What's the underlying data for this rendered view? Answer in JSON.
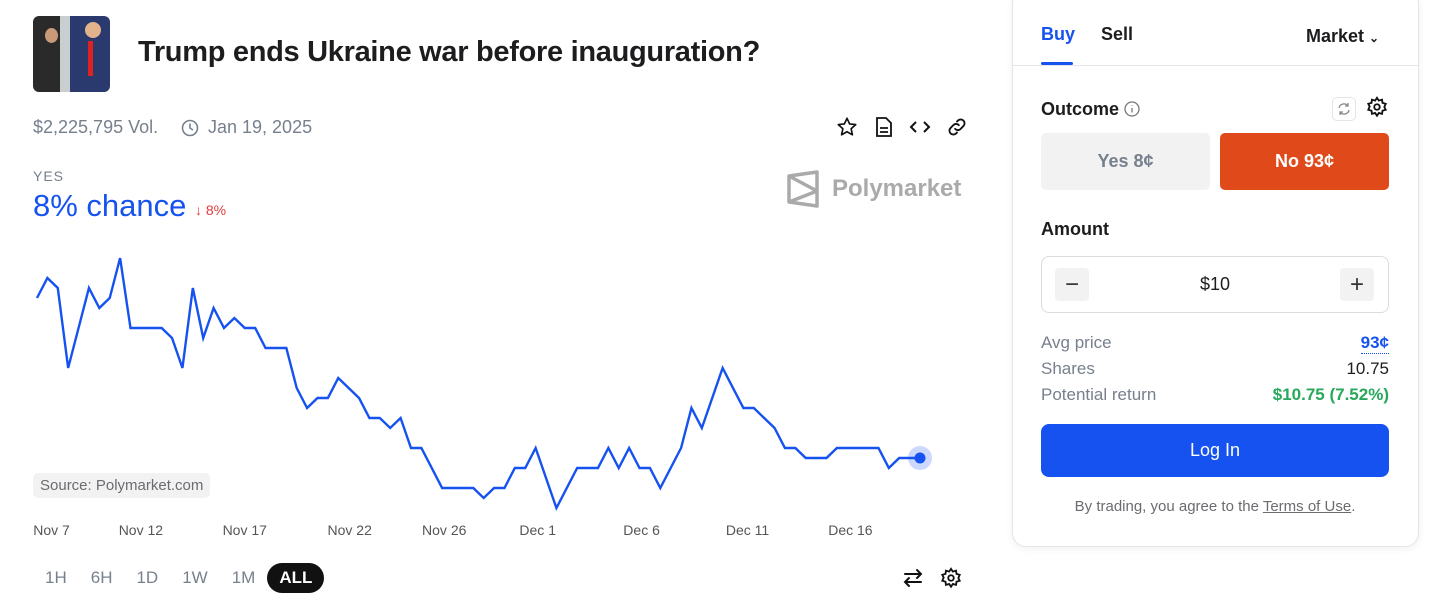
{
  "market": {
    "title": "Trump ends Ukraine war before inauguration?",
    "volume": "$2,225,795 Vol.",
    "end_date": "Jan 19, 2025",
    "outcome_label": "YES",
    "chance": "8% chance",
    "change": "8%",
    "brand": "Polymarket",
    "source": "Source: Polymarket.com"
  },
  "icons": [
    "star-icon",
    "document-icon",
    "code-icon",
    "link-icon",
    "clock-icon",
    "swap-icon",
    "gear-icon"
  ],
  "time_ranges": [
    "1H",
    "6H",
    "1D",
    "1W",
    "1M",
    "ALL"
  ],
  "active_range": "ALL",
  "colors": {
    "accent": "#1652f0",
    "no": "#e04a1b",
    "down": "#e23b3b",
    "up": "#27a85a"
  },
  "trade": {
    "tabs": [
      "Buy",
      "Sell"
    ],
    "order_type": "Market",
    "outcome_label": "Outcome",
    "yes_button": "Yes 8¢",
    "no_button": "No 93¢",
    "amount_label": "Amount",
    "amount_value": "$10",
    "minus": "−",
    "plus": "+",
    "avg_price_label": "Avg price",
    "avg_price": "93¢",
    "shares_label": "Shares",
    "shares": "10.75",
    "return_label": "Potential return",
    "return_value": "$10.75 (7.52%)",
    "login": "Log In",
    "terms_prefix": "By trading, you agree to the ",
    "terms_link": "Terms of Use",
    "terms_suffix": "."
  },
  "chart_data": {
    "type": "line",
    "series": [
      {
        "name": "Yes",
        "unit": "%",
        "points": [
          [
            0,
            24
          ],
          [
            1,
            26
          ],
          [
            2,
            25
          ],
          [
            3,
            17
          ],
          [
            5,
            25
          ],
          [
            6,
            23
          ],
          [
            7,
            24
          ],
          [
            8,
            28
          ],
          [
            9,
            21
          ],
          [
            12,
            21
          ],
          [
            13,
            20
          ],
          [
            14,
            17
          ],
          [
            15,
            25
          ],
          [
            16,
            20
          ],
          [
            17,
            23
          ],
          [
            18,
            21
          ],
          [
            19,
            22
          ],
          [
            20,
            21
          ],
          [
            21,
            21
          ],
          [
            22,
            19
          ],
          [
            24,
            19
          ],
          [
            25,
            15
          ],
          [
            26,
            13
          ],
          [
            27,
            14
          ],
          [
            28,
            14
          ],
          [
            29,
            16
          ],
          [
            31,
            14
          ],
          [
            32,
            12
          ],
          [
            33,
            12
          ],
          [
            34,
            11
          ],
          [
            35,
            12
          ],
          [
            36,
            9
          ],
          [
            37,
            9
          ],
          [
            39,
            5
          ],
          [
            42,
            5
          ],
          [
            43,
            4
          ],
          [
            44,
            5
          ],
          [
            45,
            5
          ],
          [
            46,
            7
          ],
          [
            47,
            7
          ],
          [
            48,
            9
          ],
          [
            50,
            3
          ],
          [
            52,
            7
          ],
          [
            54,
            7
          ],
          [
            55,
            9
          ],
          [
            56,
            7
          ],
          [
            57,
            9
          ],
          [
            58,
            7
          ],
          [
            59,
            7
          ],
          [
            60,
            5
          ],
          [
            62,
            9
          ],
          [
            63,
            13
          ],
          [
            64,
            11
          ],
          [
            66,
            17
          ],
          [
            68,
            13
          ],
          [
            69,
            13
          ],
          [
            71,
            11
          ],
          [
            72,
            9
          ],
          [
            73,
            9
          ],
          [
            74,
            8
          ],
          [
            76,
            8
          ],
          [
            77,
            9
          ],
          [
            81,
            9
          ],
          [
            82,
            7
          ],
          [
            83,
            8
          ],
          [
            85,
            8
          ]
        ]
      }
    ],
    "x_ticks": [
      {
        "label": "Nov 7",
        "x": 1.4
      },
      {
        "label": "Nov 12",
        "x": 10
      },
      {
        "label": "Nov 17",
        "x": 20
      },
      {
        "label": "Nov 22",
        "x": 30.1
      },
      {
        "label": "Nov 26",
        "x": 39.2
      },
      {
        "label": "Dec 1",
        "x": 48.2
      },
      {
        "label": "Dec 6",
        "x": 58.2
      },
      {
        "label": "Dec 11",
        "x": 68.4
      },
      {
        "label": "Dec 16",
        "x": 78.3
      }
    ],
    "xlim": [
      0,
      85
    ],
    "ylim": [
      3,
      28
    ],
    "grid": false
  }
}
